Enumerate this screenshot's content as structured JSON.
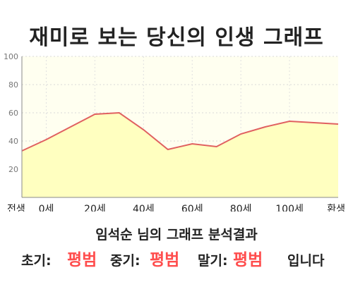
{
  "title": "재미로 보는 당신의 인생 그래프",
  "summary": "임석순 님의 그래프 분석결과",
  "stages": {
    "early_label": "초기:",
    "early_value": "평범",
    "middle_label": "중기:",
    "middle_value": "평범",
    "late_label": "말기:",
    "late_value": "평범",
    "ending": "입니다"
  },
  "colors": {
    "line": "#e06060",
    "fill": "#ffffc0",
    "plot_bg": "#fffff0",
    "highlight": "#ff4d4d"
  },
  "chart_data": {
    "type": "area",
    "x": [
      -10,
      0,
      10,
      20,
      30,
      40,
      50,
      60,
      70,
      80,
      90,
      100,
      110,
      120
    ],
    "values": [
      33,
      41,
      50,
      59,
      60,
      48,
      34,
      38,
      36,
      45,
      50,
      54,
      53,
      52
    ],
    "xticks": [
      {
        "value": -10,
        "label": "전생"
      },
      {
        "value": 0,
        "label": "0세"
      },
      {
        "value": 20,
        "label": "20세"
      },
      {
        "value": 40,
        "label": "40세"
      },
      {
        "value": 60,
        "label": "60세"
      },
      {
        "value": 80,
        "label": "80세"
      },
      {
        "value": 100,
        "label": "100세"
      },
      {
        "value": 120,
        "label": "환생"
      }
    ],
    "yticks": [
      100,
      80,
      60,
      40,
      20
    ],
    "xlim": [
      -10,
      120
    ],
    "ylim": [
      0,
      100
    ],
    "grid": true
  }
}
